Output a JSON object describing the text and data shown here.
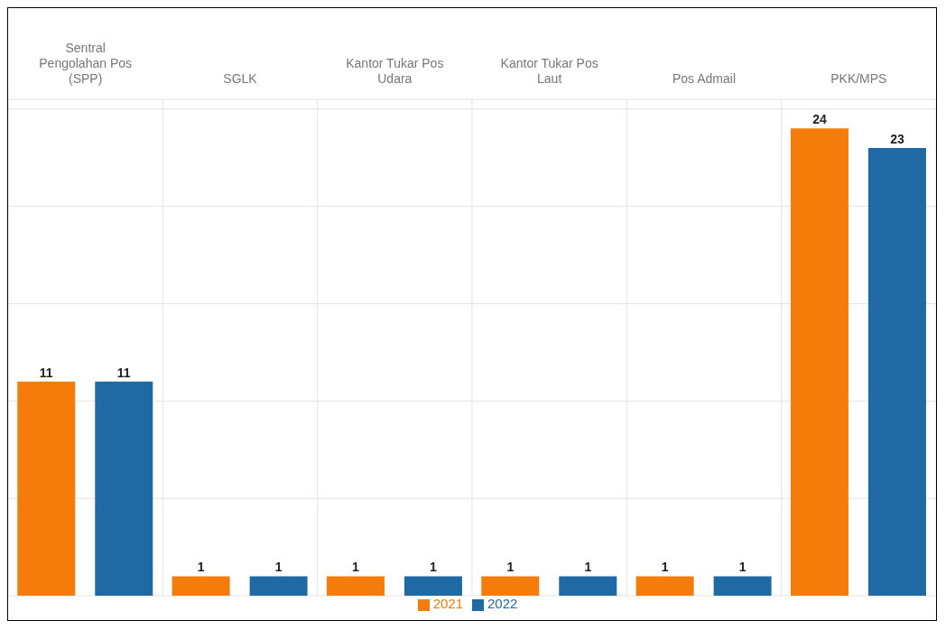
{
  "chart_data": {
    "type": "bar",
    "categories": [
      "Sentral Pengolahan Pos (SPP)",
      "SGLK",
      "Kantor Tukar Pos Udara",
      "Kantor Tukar Pos Laut",
      "Pos Admail",
      "PKK/MPS"
    ],
    "series": [
      {
        "name": "2021",
        "color": "#f57c0a",
        "values": [
          11,
          1,
          1,
          1,
          1,
          24
        ]
      },
      {
        "name": "2022",
        "color": "#1f6aa5",
        "values": [
          11,
          1,
          1,
          1,
          1,
          23
        ]
      }
    ],
    "ylim": [
      0,
      25.5
    ],
    "yticks": [
      {
        "value": 0,
        "label": null
      },
      {
        "value": 5,
        "label": null
      },
      {
        "value": 10,
        "label": null
      },
      {
        "value": 15,
        "label": null
      },
      {
        "value": 20,
        "label": null
      },
      {
        "value": 25,
        "label": null
      }
    ],
    "tick_labels": "x",
    "grid": true,
    "data_labels": true,
    "legend": "bottom"
  }
}
